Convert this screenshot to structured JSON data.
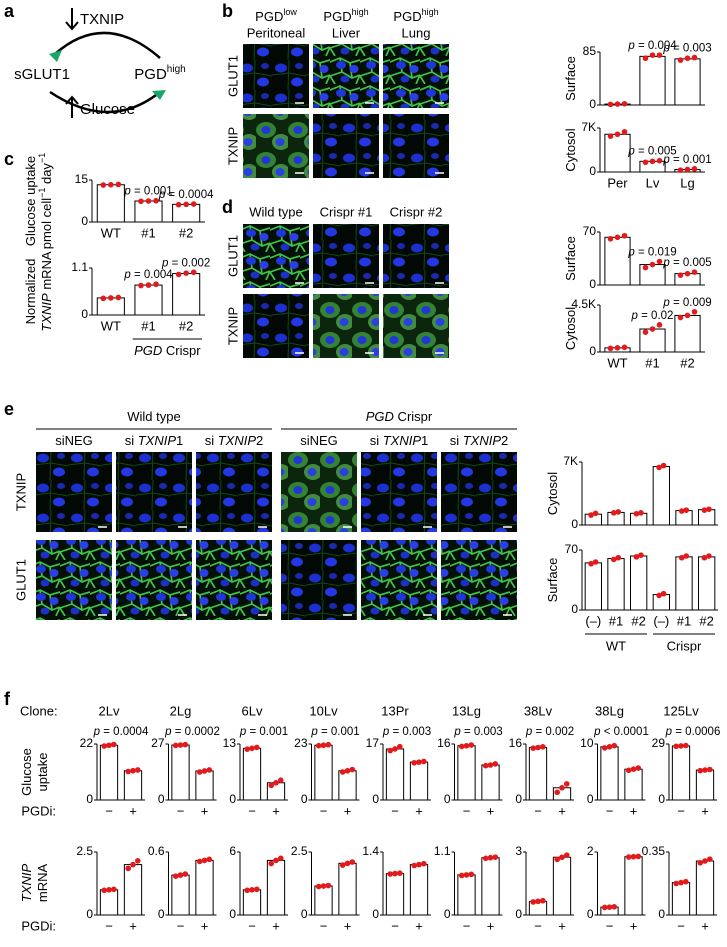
{
  "panels": [
    "a",
    "b",
    "c",
    "d",
    "e",
    "f"
  ],
  "diagram_a": {
    "inhibitor": "TXNIP",
    "transporter": "sGLUT1",
    "state": "PGD",
    "state_sup": "high",
    "nutrient": "Glucose"
  },
  "panel_b": {
    "columns": [
      {
        "name": "PGD",
        "sup": "low",
        "tissue": "Peritoneal"
      },
      {
        "name": "PGD",
        "sup": "high",
        "tissue": "Liver"
      },
      {
        "name": "PGD",
        "sup": "high",
        "tissue": "Lung"
      }
    ],
    "rows": [
      "GLUT1",
      "TXNIP"
    ]
  },
  "panel_d": {
    "columns": [
      "Wild type",
      "Crispr #1",
      "Crispr #2"
    ],
    "rows": [
      "GLUT1",
      "TXNIP"
    ]
  },
  "panel_e": {
    "groups": [
      [
        "Wild type"
      ],
      [
        {
          "i": "PGD"
        },
        " Crispr"
      ]
    ],
    "columns": [
      [
        "siNEG"
      ],
      [
        "si ",
        {
          "i": "TXNIP"
        },
        "1"
      ],
      [
        "si ",
        {
          "i": "TXNIP"
        },
        "2"
      ],
      [
        "siNEG"
      ],
      [
        "si ",
        {
          "i": "TXNIP"
        },
        "1"
      ],
      [
        "si ",
        {
          "i": "TXNIP"
        },
        "2"
      ]
    ],
    "rows": [
      "TXNIP",
      "GLUT1"
    ]
  },
  "panel_f": {
    "clone_label": "Clone:",
    "clones": [
      "2Lv",
      "2Lg",
      "6Lv",
      "10Lv",
      "13Pr",
      "13Lg",
      "38Lv",
      "38Lg",
      "125Lv"
    ],
    "row_labels": [
      [
        [
          "Glucose"
        ],
        [
          "uptake"
        ]
      ],
      [
        [
          {
            "i": "TXNIP"
          }
        ],
        [
          "mRNA"
        ]
      ]
    ],
    "treatment_label": "PGDi:"
  },
  "chart_data": [
    {
      "type": "bar",
      "ylabel": [
        [
          "Surface"
        ]
      ],
      "ylim": [
        0,
        85
      ],
      "yticks": [
        0,
        85
      ],
      "color": "#ffffff",
      "point_color": "#e31a1c",
      "values": [
        1.5,
        78,
        74
      ],
      "points": [
        [
          1,
          1.5,
          2
        ],
        [
          75,
          80,
          80
        ],
        [
          72,
          75,
          76
        ]
      ],
      "annotations": [
        null,
        [
          "p",
          " = 0.004"
        ],
        [
          "p",
          " = 0.003"
        ]
      ]
    },
    {
      "type": "bar",
      "ylabel": [
        [
          "Cytosol"
        ]
      ],
      "ylim": [
        0,
        7000
      ],
      "yticks": [
        0,
        {
          "value": 7000,
          "label": "7K"
        }
      ],
      "color": "#ffffff",
      "point_color": "#e31a1c",
      "categories": [
        "Per",
        "Lv",
        "Lg"
      ],
      "values": [
        6000,
        1700,
        400
      ],
      "points": [
        [
          5700,
          6000,
          6400
        ],
        [
          1550,
          1700,
          1800
        ],
        [
          300,
          400,
          500
        ]
      ],
      "annotations": [
        null,
        [
          "p",
          " = 0.005"
        ],
        [
          "p",
          " = 0.001"
        ]
      ]
    },
    {
      "type": "bar",
      "ylabel": [
        [
          "Glucose uptake"
        ],
        [
          "pmol cell",
          {
            "sup": "−1"
          },
          " day",
          {
            "sup": "−1"
          }
        ]
      ],
      "ylim": [
        0,
        15
      ],
      "yticks": [
        0,
        15
      ],
      "color": "#ffffff",
      "point_color": "#e31a1c",
      "categories": [
        "WT",
        "#1",
        "#2"
      ],
      "values": [
        13.3,
        7.5,
        6.3
      ],
      "points": [
        [
          13.2,
          13.3,
          13.4
        ],
        [
          7.4,
          7.5,
          7.6
        ],
        [
          6.2,
          6.3,
          6.4
        ]
      ],
      "annotations": [
        null,
        [
          "p",
          " = 0.001"
        ],
        [
          "p",
          " = 0.0004"
        ]
      ]
    },
    {
      "type": "bar",
      "ylabel": [
        [
          "Normalized"
        ],
        [
          {
            "i": "TXNIP"
          },
          " mRNA"
        ]
      ],
      "ylim": [
        0,
        1.1
      ],
      "yticks": [
        0,
        1.1
      ],
      "color": "#ffffff",
      "point_color": "#e31a1c",
      "categories": [
        "WT",
        "#1",
        "#2"
      ],
      "values": [
        0.4,
        0.7,
        0.97
      ],
      "points": [
        [
          0.39,
          0.4,
          0.41
        ],
        [
          0.69,
          0.7,
          0.72
        ],
        [
          0.95,
          0.98,
          1.0
        ]
      ],
      "annotations": [
        null,
        [
          "p",
          " = 0.004"
        ],
        [
          "p",
          " = 0.002"
        ]
      ],
      "group": [
        {
          "i": "PGD"
        },
        " Crispr"
      ]
    },
    {
      "type": "bar",
      "ylabel": [
        [
          "Surface"
        ]
      ],
      "ylim": [
        0,
        70
      ],
      "yticks": [
        0,
        70
      ],
      "color": "#ffffff",
      "point_color": "#e31a1c",
      "values": [
        63,
        27,
        15
      ],
      "points": [
        [
          61,
          63,
          65
        ],
        [
          23,
          27,
          31
        ],
        [
          13,
          15,
          17
        ]
      ],
      "annotations": [
        null,
        [
          "p",
          " = 0.019"
        ],
        [
          "p",
          " = 0.005"
        ]
      ]
    },
    {
      "type": "bar",
      "ylabel": [
        [
          "Cytosol"
        ]
      ],
      "ylim": [
        0,
        4500
      ],
      "yticks": [
        0,
        {
          "value": 4500,
          "label": "4.5K"
        }
      ],
      "color": "#ffffff",
      "point_color": "#e31a1c",
      "categories": [
        "WT",
        "#1",
        "#2"
      ],
      "values": [
        400,
        2200,
        3500
      ],
      "points": [
        [
          350,
          400,
          450
        ],
        [
          1900,
          2200,
          2600
        ],
        [
          3300,
          3500,
          3850
        ]
      ],
      "annotations": [
        null,
        [
          "p",
          " = 0.02"
        ],
        [
          "p",
          " = 0.009"
        ]
      ]
    },
    {
      "type": "bar",
      "ylabel": [
        [
          "Cytosol"
        ]
      ],
      "ylim": [
        0,
        7000
      ],
      "yticks": [
        0,
        {
          "value": 7000,
          "label": "7K"
        }
      ],
      "color": "#ffffff",
      "point_color": "#e31a1c",
      "values": [
        1200,
        1400,
        1300,
        6500,
        1600,
        1700
      ],
      "points": [
        [
          1100,
          1300
        ],
        [
          1350,
          1450
        ],
        [
          1250,
          1350
        ],
        [
          6400,
          6600
        ],
        [
          1550,
          1650
        ],
        [
          1650,
          1750
        ]
      ]
    },
    {
      "type": "bar",
      "ylabel": [
        [
          "Surface"
        ]
      ],
      "ylim": [
        0,
        70
      ],
      "yticks": [
        0,
        70
      ],
      "color": "#ffffff",
      "point_color": "#e31a1c",
      "categories": [
        "(–)",
        "#1",
        "#2",
        "(–)",
        "#1",
        "#2"
      ],
      "values": [
        55,
        60,
        63,
        18,
        62,
        62
      ],
      "points": [
        [
          54,
          56
        ],
        [
          59,
          61
        ],
        [
          62,
          64
        ],
        [
          17,
          19
        ],
        [
          61,
          63
        ],
        [
          61,
          63
        ]
      ],
      "groups": [
        "WT",
        "Crispr"
      ]
    },
    {
      "type": "bar",
      "ylim": [
        0,
        22
      ],
      "yticks": [
        0,
        22
      ],
      "color": "#ffffff",
      "point_color": "#e31a1c",
      "categories": [
        "−",
        "+"
      ],
      "values": [
        21.5,
        11.5
      ],
      "points": [
        [
          21.2,
          21.5,
          21.8
        ],
        [
          11.2,
          11.5,
          11.8
        ]
      ],
      "annotation": [
        "p",
        " = 0.0004"
      ]
    },
    {
      "type": "bar",
      "ylim": [
        0,
        27
      ],
      "yticks": [
        0,
        27
      ],
      "color": "#ffffff",
      "point_color": "#e31a1c",
      "categories": [
        "−",
        "+"
      ],
      "values": [
        26.5,
        14
      ],
      "points": [
        [
          26.3,
          26.5,
          26.7
        ],
        [
          13.5,
          14,
          14.5
        ]
      ],
      "annotation": [
        "p",
        " = 0.0002"
      ]
    },
    {
      "type": "bar",
      "ylim": [
        0,
        13
      ],
      "yticks": [
        0,
        13
      ],
      "color": "#ffffff",
      "point_color": "#e31a1c",
      "categories": [
        "−",
        "+"
      ],
      "values": [
        12,
        4
      ],
      "points": [
        [
          11.8,
          12,
          12.2
        ],
        [
          3.4,
          4,
          4.6
        ]
      ],
      "annotation": [
        "p",
        " = 0.001"
      ]
    },
    {
      "type": "bar",
      "ylim": [
        0,
        23
      ],
      "yticks": [
        0,
        23
      ],
      "color": "#ffffff",
      "point_color": "#e31a1c",
      "categories": [
        "−",
        "+"
      ],
      "values": [
        22.5,
        12
      ],
      "points": [
        [
          22.3,
          22.5,
          22.7
        ],
        [
          11.5,
          12,
          12.5
        ]
      ],
      "annotation": [
        "p",
        " = 0.001"
      ]
    },
    {
      "type": "bar",
      "ylim": [
        0,
        17
      ],
      "yticks": [
        0,
        17
      ],
      "color": "#ffffff",
      "point_color": "#e31a1c",
      "categories": [
        "−",
        "+"
      ],
      "values": [
        15.5,
        11.5
      ],
      "points": [
        [
          15,
          15.5,
          16.2
        ],
        [
          11.3,
          11.5,
          11.7
        ]
      ],
      "annotation": [
        "p",
        " = 0.003"
      ]
    },
    {
      "type": "bar",
      "ylim": [
        0,
        16
      ],
      "yticks": [
        0,
        16
      ],
      "color": "#ffffff",
      "point_color": "#e31a1c",
      "categories": [
        "−",
        "+"
      ],
      "values": [
        15.5,
        10
      ],
      "points": [
        [
          15.3,
          15.5,
          15.7
        ],
        [
          9.8,
          10,
          10.3
        ]
      ],
      "annotation": [
        "p",
        " = 0.003"
      ]
    },
    {
      "type": "bar",
      "ylim": [
        0,
        16
      ],
      "yticks": [
        0,
        16
      ],
      "color": "#ffffff",
      "point_color": "#e31a1c",
      "categories": [
        "−",
        "+"
      ],
      "values": [
        15,
        3.5
      ],
      "points": [
        [
          14.8,
          15,
          15.2
        ],
        [
          2.2,
          3.5,
          4.6
        ]
      ],
      "annotation": [
        "p",
        " = 0.002"
      ]
    },
    {
      "type": "bar",
      "ylim": [
        0,
        10
      ],
      "yticks": [
        0,
        10
      ],
      "color": "#ffffff",
      "point_color": "#e31a1c",
      "categories": [
        "−",
        "+"
      ],
      "values": [
        9.5,
        5.5
      ],
      "points": [
        [
          9.3,
          9.5,
          9.7
        ],
        [
          5.3,
          5.5,
          5.7
        ]
      ],
      "annotation": [
        "p",
        " < 0.0001"
      ]
    },
    {
      "type": "bar",
      "ylim": [
        0,
        29
      ],
      "yticks": [
        0,
        29
      ],
      "color": "#ffffff",
      "point_color": "#e31a1c",
      "categories": [
        "−",
        "+"
      ],
      "values": [
        28,
        15.5
      ],
      "points": [
        [
          27.8,
          28,
          28.2
        ],
        [
          15.2,
          15.5,
          15.8
        ]
      ],
      "annotation": [
        "p",
        " = 0.0006"
      ]
    },
    {
      "type": "bar",
      "ylim": [
        0,
        2.5
      ],
      "yticks": [
        0,
        2.5
      ],
      "color": "#ffffff",
      "point_color": "#e31a1c",
      "categories": [
        "−",
        "+"
      ],
      "values": [
        1.0,
        2.0
      ],
      "points": [
        [
          0.98,
          1.0,
          1.02
        ],
        [
          1.85,
          2.0,
          2.15
        ]
      ]
    },
    {
      "type": "bar",
      "ylim": [
        0,
        0.6
      ],
      "yticks": [
        0,
        0.6
      ],
      "color": "#ffffff",
      "point_color": "#e31a1c",
      "categories": [
        "−",
        "+"
      ],
      "values": [
        0.38,
        0.52
      ],
      "points": [
        [
          0.37,
          0.38,
          0.39
        ],
        [
          0.51,
          0.52,
          0.53
        ]
      ]
    },
    {
      "type": "bar",
      "ylim": [
        0,
        6
      ],
      "yticks": [
        0,
        6
      ],
      "color": "#ffffff",
      "point_color": "#e31a1c",
      "categories": [
        "−",
        "+"
      ],
      "values": [
        2.4,
        5.2
      ],
      "points": [
        [
          2.35,
          2.4,
          2.45
        ],
        [
          4.9,
          5.2,
          5.4
        ]
      ]
    },
    {
      "type": "bar",
      "ylim": [
        0,
        2.5
      ],
      "yticks": [
        0,
        2.5
      ],
      "color": "#ffffff",
      "point_color": "#e31a1c",
      "categories": [
        "−",
        "+"
      ],
      "values": [
        1.15,
        2.05
      ],
      "points": [
        [
          1.13,
          1.15,
          1.17
        ],
        [
          1.98,
          2.05,
          2.1
        ]
      ]
    },
    {
      "type": "bar",
      "ylim": [
        0,
        1.4
      ],
      "yticks": [
        0,
        1.4
      ],
      "color": "#ffffff",
      "point_color": "#e31a1c",
      "categories": [
        "−",
        "+"
      ],
      "values": [
        0.92,
        1.12
      ],
      "points": [
        [
          0.91,
          0.92,
          0.93
        ],
        [
          1.1,
          1.12,
          1.14
        ]
      ]
    },
    {
      "type": "bar",
      "ylim": [
        0,
        1.1
      ],
      "yticks": [
        0,
        1.1
      ],
      "color": "#ffffff",
      "point_color": "#e31a1c",
      "categories": [
        "−",
        "+"
      ],
      "values": [
        0.7,
        1.0
      ],
      "points": [
        [
          0.69,
          0.7,
          0.71
        ],
        [
          0.99,
          1.0,
          1.01
        ]
      ]
    },
    {
      "type": "bar",
      "ylim": [
        0,
        3
      ],
      "yticks": [
        0,
        3
      ],
      "color": "#ffffff",
      "point_color": "#e31a1c",
      "categories": [
        "−",
        "+"
      ],
      "values": [
        0.65,
        2.75
      ],
      "points": [
        [
          0.62,
          0.65,
          0.68
        ],
        [
          2.65,
          2.75,
          2.85
        ]
      ]
    },
    {
      "type": "bar",
      "ylim": [
        0,
        2
      ],
      "yticks": [
        0,
        2
      ],
      "color": "#ffffff",
      "point_color": "#e31a1c",
      "categories": [
        "−",
        "+"
      ],
      "values": [
        0.25,
        1.85
      ],
      "points": [
        [
          0.24,
          0.25,
          0.26
        ],
        [
          1.84,
          1.85,
          1.86
        ]
      ]
    },
    {
      "type": "bar",
      "ylim": [
        0,
        0.35
      ],
      "yticks": [
        0,
        0.35
      ],
      "color": "#ffffff",
      "point_color": "#e31a1c",
      "categories": [
        "−",
        "+"
      ],
      "values": [
        0.18,
        0.3
      ],
      "points": [
        [
          0.175,
          0.18,
          0.185
        ],
        [
          0.29,
          0.3,
          0.31
        ]
      ]
    }
  ]
}
